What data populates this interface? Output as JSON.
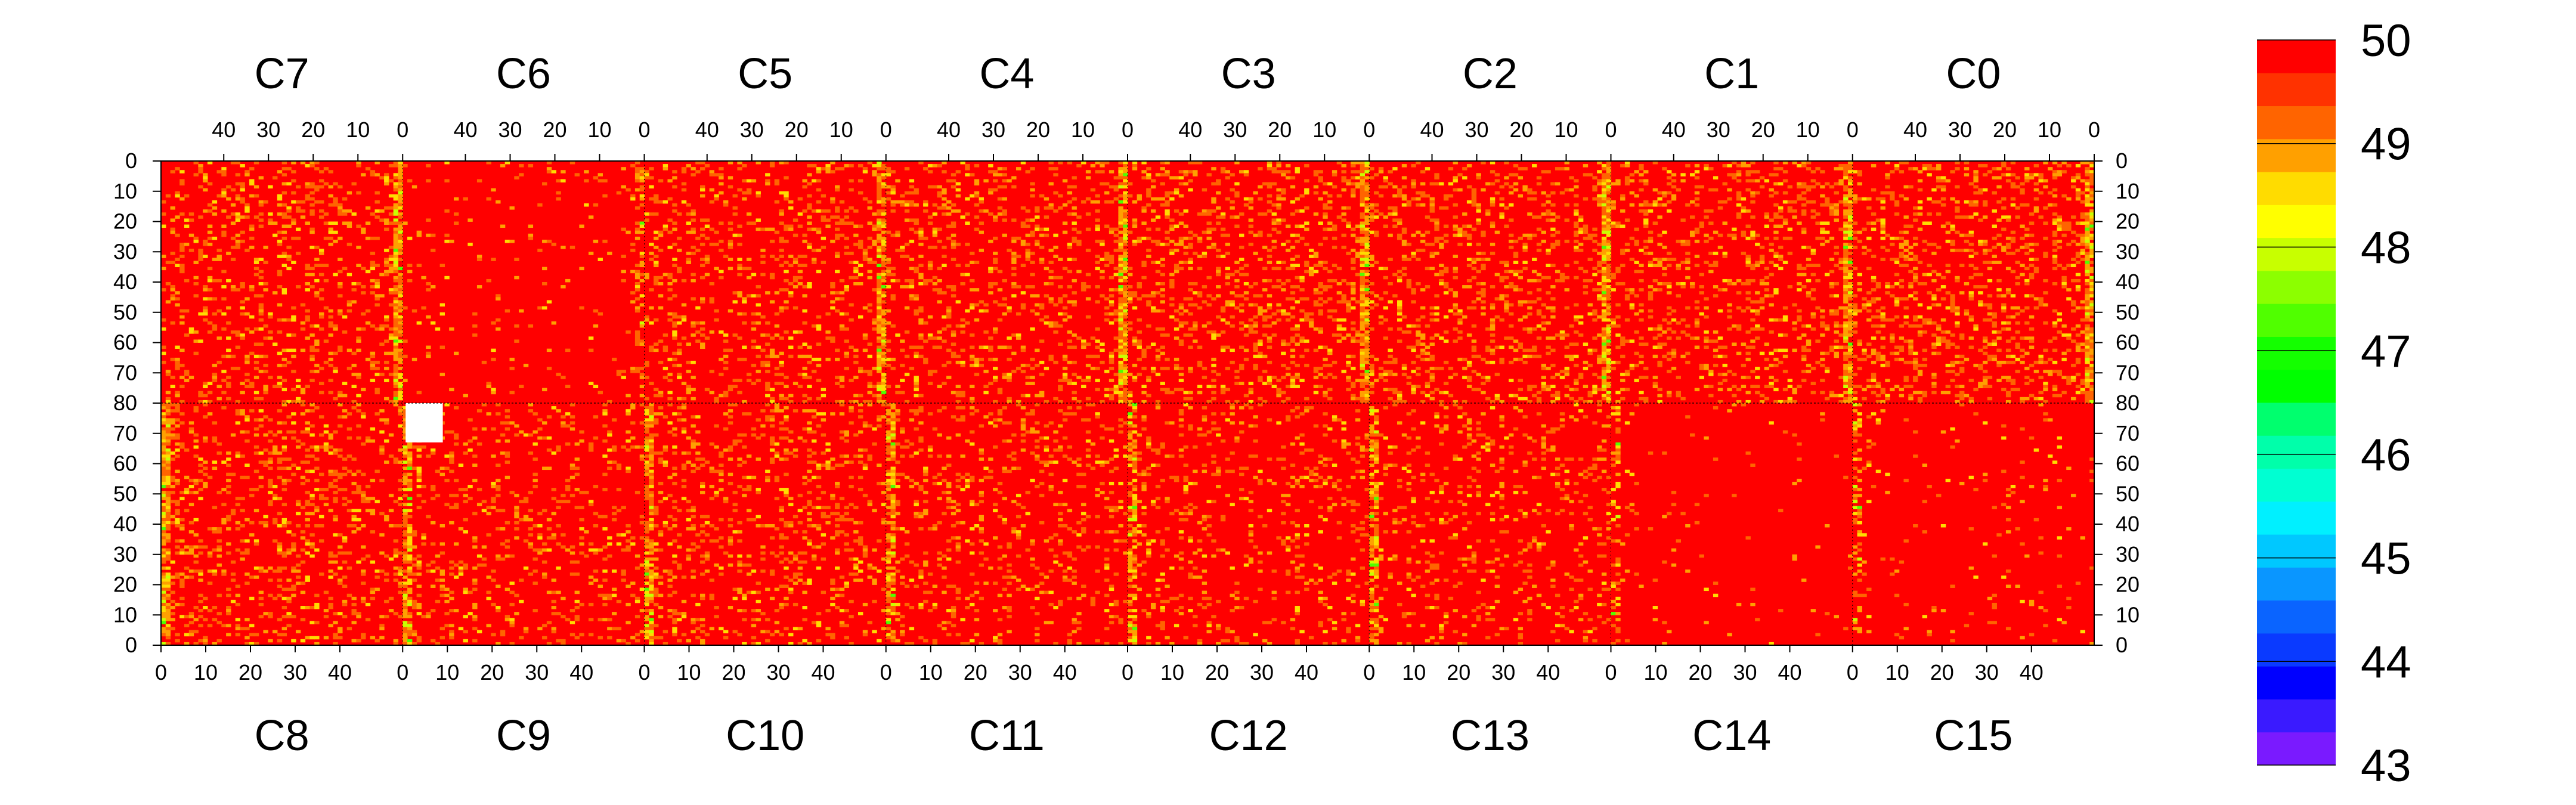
{
  "chart_data": {
    "type": "heatmap",
    "description_free": true,
    "top_chip_labels": [
      "C7",
      "C6",
      "C5",
      "C4",
      "C3",
      "C2",
      "C1",
      "C0"
    ],
    "bottom_chip_labels": [
      "C8",
      "C9",
      "C10",
      "C11",
      "C12",
      "C13",
      "C14",
      "C15"
    ],
    "top_x_tick_labels": [
      "40",
      "30",
      "20",
      "10",
      "0"
    ],
    "bottom_x_tick_labels": [
      "0",
      "10",
      "20",
      "30",
      "40"
    ],
    "top_x_tick_values": [
      40,
      30,
      20,
      10,
      0
    ],
    "bottom_x_tick_values": [
      0,
      10,
      20,
      30,
      40
    ],
    "y_tick_labels": [
      "0",
      "10",
      "20",
      "30",
      "40",
      "50",
      "60",
      "70",
      "80",
      "70",
      "60",
      "50",
      "40",
      "30",
      "20",
      "10",
      "0"
    ],
    "columns_per_chip": 52,
    "rows_per_half": 80,
    "zlim": [
      43,
      50
    ],
    "colorbar": {
      "tick_labels": [
        "50",
        "49",
        "48",
        "47",
        "46",
        "45",
        "44",
        "43"
      ],
      "tick_values": [
        50,
        49,
        48,
        47,
        46,
        45,
        44,
        43
      ],
      "levels": 20,
      "colors": [
        "#7a1aff",
        "#3a1aff",
        "#0000ff",
        "#0a3aff",
        "#0a64ff",
        "#0a96ff",
        "#00c8ff",
        "#00f0ff",
        "#00ffd2",
        "#00ffaa",
        "#00ff6e",
        "#00ff00",
        "#14ff00",
        "#50ff00",
        "#8cff00",
        "#c8ff00",
        "#ffff00",
        "#ffdc00",
        "#ffa000",
        "#ff6400",
        "#ff3200",
        "#ff0000"
      ]
    },
    "value_colors": {
      "base": "#ff0000",
      "low1": "#ff6400",
      "low2": "#ffa000",
      "low3": "#ffdc00",
      "low4": "#c8ff00",
      "low5": "#50ff00",
      "masked": "#ffffff"
    },
    "chip_noise_level": [
      0.22,
      0.18,
      0.2,
      0.2,
      0.18,
      0.16,
      0.04,
      0.18,
      0.18,
      0.14,
      0.16,
      0.14,
      0.12,
      0.12,
      0.02,
      0.03
    ],
    "hot_edge_columns": "chip boundaries (column 0 of each chip) show elevated low-value density",
    "masked_region": {
      "chip": "C9",
      "row_range_from_center": [
        0,
        13
      ],
      "col_range": [
        0,
        8
      ]
    }
  }
}
